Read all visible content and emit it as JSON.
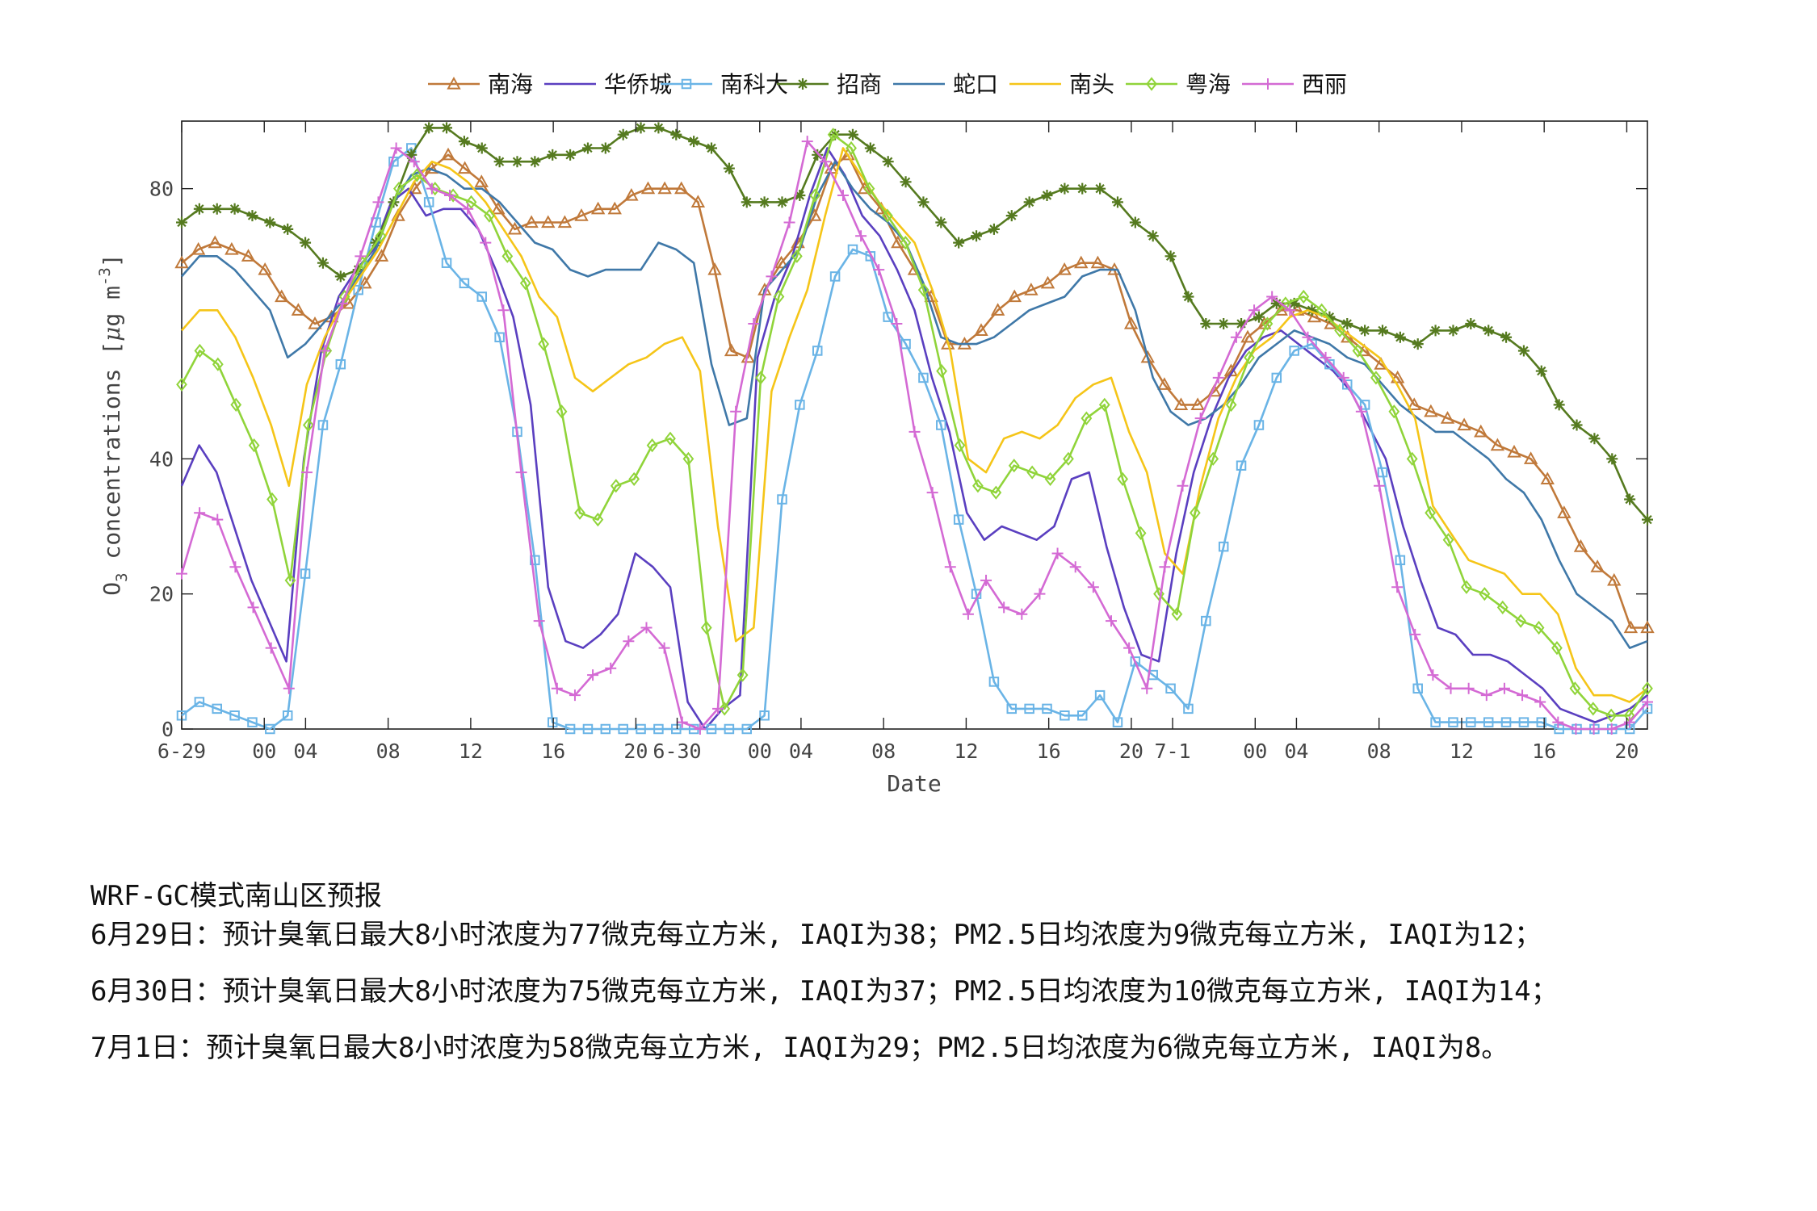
{
  "chart_data": {
    "type": "line",
    "title": "",
    "xlabel": "Date",
    "ylabel": "O3 concentrations [μg m-3]",
    "ylabel_parts": {
      "main": "O",
      "sub": "3",
      "text": " concentrations [",
      "mu": "μ",
      "unit": "g m",
      "sup": "-3",
      "close": "]"
    },
    "ylim": [
      0,
      90
    ],
    "yticks": [
      0,
      20,
      40,
      80
    ],
    "xlim": [
      0,
      71
    ],
    "xticks": [
      {
        "x": 0,
        "label": "6-29"
      },
      {
        "x": 4,
        "label": "00"
      },
      {
        "x": 6,
        "label": "04"
      },
      {
        "x": 10,
        "label": "08"
      },
      {
        "x": 14,
        "label": "12"
      },
      {
        "x": 18,
        "label": "16"
      },
      {
        "x": 22,
        "label": "20"
      },
      {
        "x": 24,
        "label": "6-30"
      },
      {
        "x": 28,
        "label": "00"
      },
      {
        "x": 30,
        "label": "04"
      },
      {
        "x": 34,
        "label": "08"
      },
      {
        "x": 38,
        "label": "12"
      },
      {
        "x": 42,
        "label": "16"
      },
      {
        "x": 46,
        "label": "20"
      },
      {
        "x": 48,
        "label": "7-1"
      },
      {
        "x": 52,
        "label": "00"
      },
      {
        "x": 54,
        "label": "04"
      },
      {
        "x": 58,
        "label": "08"
      },
      {
        "x": 62,
        "label": "12"
      },
      {
        "x": 66,
        "label": "16"
      },
      {
        "x": 70,
        "label": "20"
      }
    ],
    "grid": false,
    "legend_position": "top-center",
    "series": [
      {
        "name": "南海",
        "color": "#c0793a",
        "marker": "triangle",
        "values": [
          69,
          71,
          72,
          71,
          70,
          68,
          64,
          62,
          60,
          61,
          63,
          66,
          70,
          76,
          80,
          83,
          85,
          83,
          81,
          77,
          74,
          75,
          75,
          75,
          76,
          77,
          77,
          79,
          80,
          80,
          80,
          78,
          68,
          56,
          55,
          65,
          69,
          72,
          76,
          83,
          85,
          80,
          77,
          72,
          68,
          64,
          57,
          57,
          59,
          62,
          64,
          65,
          66,
          68,
          69,
          69,
          68,
          60,
          55,
          51,
          48,
          48,
          50,
          53,
          58,
          60,
          62,
          62,
          61,
          60,
          58,
          56,
          54,
          52,
          48,
          47,
          46,
          45,
          44,
          42,
          41,
          40,
          37,
          32,
          27,
          24,
          22,
          15,
          15
        ]
      },
      {
        "name": "华侨城",
        "color": "#5a3fc0",
        "marker": "none",
        "values": [
          36,
          42,
          38,
          30,
          22,
          16,
          10,
          40,
          56,
          64,
          68,
          71,
          78,
          80,
          76,
          77,
          77,
          74,
          68,
          61,
          48,
          21,
          13,
          12,
          14,
          17,
          26,
          24,
          21,
          4,
          0,
          3,
          5,
          55,
          64,
          70,
          79,
          86,
          82,
          76,
          73,
          68,
          62,
          52,
          44,
          32,
          28,
          30,
          29,
          28,
          30,
          37,
          38,
          27,
          18,
          11,
          10,
          26,
          38,
          46,
          52,
          56,
          58,
          59,
          57,
          55,
          53,
          50,
          45,
          40,
          30,
          22,
          15,
          14,
          11,
          11,
          10,
          8,
          6,
          3,
          2,
          1,
          2,
          3,
          5
        ]
      },
      {
        "name": "南科大",
        "color": "#6ab4e6",
        "marker": "square",
        "values": [
          2,
          4,
          3,
          2,
          1,
          0,
          2,
          23,
          45,
          54,
          65,
          75,
          84,
          86,
          78,
          69,
          66,
          64,
          58,
          44,
          25,
          1,
          0,
          0,
          0,
          0,
          0,
          0,
          0,
          0,
          0,
          0,
          0,
          2,
          34,
          48,
          56,
          67,
          71,
          70,
          61,
          57,
          52,
          45,
          31,
          20,
          7,
          3,
          3,
          3,
          2,
          2,
          5,
          1,
          10,
          8,
          6,
          3,
          16,
          27,
          39,
          45,
          52,
          56,
          57,
          54,
          51,
          48,
          38,
          25,
          6,
          1,
          1,
          1,
          1,
          1,
          1,
          1,
          0,
          0,
          0,
          0,
          0,
          3
        ]
      },
      {
        "name": "招商",
        "color": "#557a1f",
        "marker": "star",
        "values": [
          75,
          77,
          77,
          77,
          76,
          75,
          74,
          72,
          69,
          67,
          68,
          72,
          78,
          85,
          89,
          89,
          87,
          86,
          84,
          84,
          84,
          85,
          85,
          86,
          86,
          88,
          89,
          89,
          88,
          87,
          86,
          83,
          78,
          78,
          78,
          79,
          85,
          88,
          88,
          86,
          84,
          81,
          78,
          75,
          72,
          73,
          74,
          76,
          78,
          79,
          80,
          80,
          80,
          78,
          75,
          73,
          70,
          64,
          60,
          60,
          60,
          61,
          63,
          63,
          62,
          61,
          60,
          59,
          59,
          58,
          57,
          59,
          59,
          60,
          59,
          58,
          56,
          53,
          48,
          45,
          43,
          40,
          34,
          31
        ]
      },
      {
        "name": "蛇口",
        "color": "#3f78a8",
        "marker": "none",
        "values": [
          67,
          70,
          70,
          68,
          65,
          62,
          55,
          57,
          60,
          63,
          67,
          71,
          78,
          82,
          83,
          82,
          80,
          80,
          78,
          75,
          72,
          71,
          68,
          67,
          68,
          68,
          68,
          72,
          71,
          69,
          54,
          45,
          46,
          65,
          68,
          71,
          79,
          84,
          80,
          77,
          75,
          72,
          66,
          58,
          57,
          57,
          58,
          60,
          62,
          63,
          64,
          67,
          68,
          68,
          62,
          52,
          47,
          45,
          46,
          48,
          51,
          55,
          57,
          59,
          58,
          57,
          55,
          54,
          51,
          48,
          46,
          44,
          44,
          42,
          40,
          37,
          35,
          31,
          25,
          20,
          18,
          16,
          12,
          13
        ]
      },
      {
        "name": "南头",
        "color": "#f5c518",
        "marker": "none",
        "values": [
          59,
          62,
          62,
          58,
          52,
          45,
          36,
          51,
          58,
          63,
          67,
          71,
          76,
          81,
          84,
          83,
          81,
          78,
          74,
          70,
          64,
          61,
          52,
          50,
          52,
          54,
          55,
          57,
          58,
          53,
          30,
          13,
          15,
          50,
          58,
          65,
          76,
          86,
          82,
          78,
          75,
          72,
          65,
          56,
          40,
          38,
          43,
          44,
          43,
          45,
          49,
          51,
          52,
          44,
          38,
          26,
          23,
          36,
          46,
          52,
          56,
          58,
          61,
          62,
          61,
          59,
          57,
          55,
          51,
          46,
          33,
          29,
          25,
          24,
          23,
          20,
          20,
          17,
          9,
          5,
          5,
          4,
          6
        ]
      },
      {
        "name": "粤海",
        "color": "#90d43a",
        "marker": "diamond",
        "values": [
          51,
          56,
          54,
          48,
          42,
          34,
          22,
          45,
          56,
          64,
          69,
          73,
          80,
          82,
          80,
          79,
          78,
          76,
          70,
          66,
          57,
          47,
          32,
          31,
          36,
          37,
          42,
          43,
          40,
          15,
          3,
          8,
          52,
          64,
          70,
          79,
          88,
          86,
          80,
          76,
          72,
          65,
          53,
          42,
          36,
          35,
          39,
          38,
          37,
          40,
          46,
          48,
          37,
          29,
          20,
          17,
          32,
          40,
          48,
          55,
          60,
          63,
          64,
          62,
          59,
          56,
          52,
          47,
          40,
          32,
          28,
          21,
          20,
          18,
          16,
          15,
          12,
          6,
          3,
          2,
          2,
          6
        ]
      },
      {
        "name": "西丽",
        "color": "#d46ad4",
        "marker": "plus",
        "values": [
          23,
          32,
          31,
          24,
          18,
          12,
          6,
          38,
          56,
          63,
          70,
          78,
          86,
          84,
          80,
          79,
          77,
          72,
          62,
          38,
          16,
          6,
          5,
          8,
          9,
          13,
          15,
          12,
          1,
          0,
          3,
          47,
          60,
          67,
          75,
          87,
          84,
          79,
          73,
          68,
          60,
          44,
          35,
          24,
          17,
          22,
          18,
          17,
          20,
          26,
          24,
          21,
          16,
          12,
          6,
          24,
          36,
          46,
          52,
          58,
          62,
          64,
          62,
          58,
          55,
          52,
          47,
          36,
          21,
          14,
          8,
          6,
          6,
          5,
          6,
          5,
          4,
          1,
          0,
          0,
          0,
          1,
          4
        ]
      }
    ]
  },
  "notes": {
    "title": "WRF-GC模式南山区预报",
    "lines": [
      "6月29日：预计臭氧日最大8小时浓度为77微克每立方米, IAQI为38；PM2.5日均浓度为9微克每立方米, IAQI为12；",
      "6月30日：预计臭氧日最大8小时浓度为75微克每立方米, IAQI为37；PM2.5日均浓度为10微克每立方米, IAQI为14；",
      "7月1日：预计臭氧日最大8小时浓度为58微克每立方米, IAQI为29；PM2.5日均浓度为6微克每立方米, IAQI为8。"
    ]
  }
}
